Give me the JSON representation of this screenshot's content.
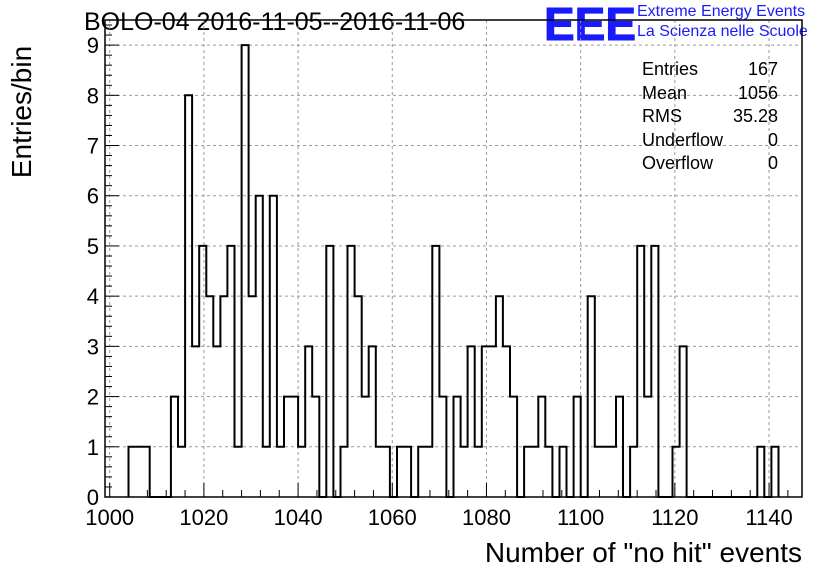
{
  "header": {
    "title": "BOLO-04 2016-11-05--2016-11-06",
    "logo_text": "EEE",
    "logo_line1": "Extreme Energy Events",
    "logo_line2": "La Scienza nelle Scuole"
  },
  "stats": [
    {
      "label": "Entries",
      "value": "167"
    },
    {
      "label": "Mean",
      "value": "1056"
    },
    {
      "label": "RMS",
      "value": "35.28"
    },
    {
      "label": "Underflow",
      "value": "0"
    },
    {
      "label": "Overflow",
      "value": "0"
    }
  ],
  "colors": {
    "logo": "#1a1aff",
    "grid": "#999999",
    "line": "#000000"
  },
  "chart_data": {
    "type": "bar",
    "style": "step-histogram",
    "title": "BOLO-04 2016-11-05--2016-11-06",
    "xlabel": "Number of \"no hit\" events",
    "ylabel": "Entries/bin",
    "xlim": [
      999,
      1147
    ],
    "ylim": [
      0,
      9.5
    ],
    "grid": true,
    "x_ticks": [
      1000,
      1020,
      1040,
      1060,
      1080,
      1100,
      1120,
      1140
    ],
    "y_ticks": [
      0,
      1,
      2,
      3,
      4,
      5,
      6,
      7,
      8,
      9
    ],
    "bin_width": 1.5,
    "bin_start": 1004,
    "values": [
      1,
      1,
      1,
      0,
      0,
      0,
      2,
      1,
      8,
      3,
      5,
      4,
      3,
      4,
      5,
      1,
      9,
      4,
      6,
      1,
      6,
      1,
      2,
      2,
      1,
      3,
      2,
      0,
      5,
      0,
      1,
      5,
      4,
      2,
      3,
      1,
      1,
      0,
      1,
      1,
      0,
      1,
      1,
      5,
      2,
      0,
      2,
      1,
      3,
      1,
      3,
      3,
      4,
      3,
      2,
      0,
      1,
      1,
      2,
      1,
      0,
      1,
      0,
      2,
      0,
      4,
      1,
      1,
      1,
      2,
      0,
      1,
      5,
      2,
      5,
      0,
      0,
      1,
      3,
      0,
      0,
      0,
      0,
      0,
      0,
      0,
      0,
      0,
      0,
      1,
      0,
      1
    ]
  }
}
